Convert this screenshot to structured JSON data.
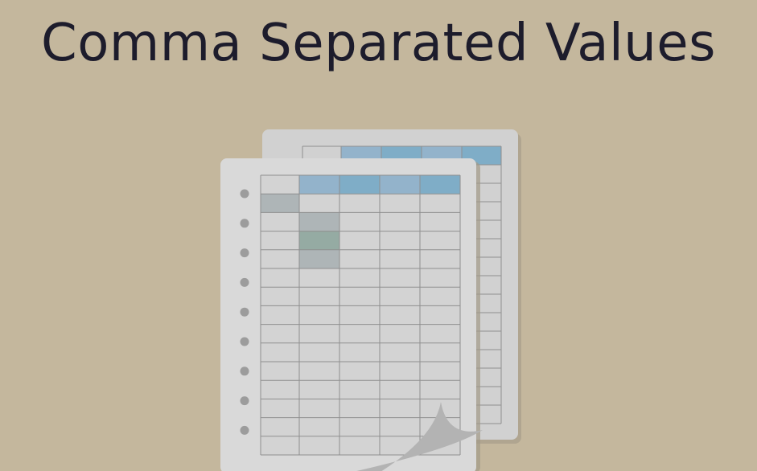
{
  "slide": {
    "title": "Comma Separated Values",
    "caption": "",
    "colors": {
      "background": "#c4b79d",
      "title_text": "#1d1c2c",
      "sheet": "#d9d9d9",
      "sheet_shadow": "#a39a87",
      "sheet_back": "#d1d1d1",
      "grid_line": "#8f8f8f",
      "cell": "#d3d3d3",
      "header_light": "#93b3cb",
      "header_dark": "#7fadc7",
      "highlight_gray": "#aeb5b7",
      "highlight_green": "#95aba3",
      "hole": "#9c9c9c",
      "page_curl": "#b3b3b3"
    },
    "icons": [
      "spreadsheet-pages-illustration",
      "binder-hole-icon",
      "page-curl-icon"
    ]
  }
}
